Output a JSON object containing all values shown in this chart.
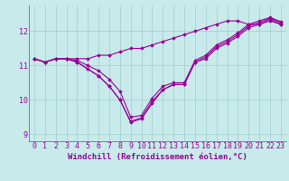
{
  "series": [
    [
      11.2,
      11.1,
      11.2,
      11.2,
      11.2,
      11.2,
      11.3,
      11.3,
      11.4,
      11.5,
      11.5,
      11.6,
      11.7,
      11.8,
      11.9,
      12.0,
      12.1,
      12.2,
      12.3,
      12.3,
      12.2,
      12.2,
      12.3,
      12.2
    ],
    [
      11.2,
      11.1,
      11.2,
      11.2,
      11.1,
      10.9,
      10.7,
      10.4,
      10.0,
      9.35,
      9.45,
      9.9,
      10.3,
      10.45,
      10.45,
      11.1,
      11.2,
      11.5,
      11.65,
      11.85,
      12.1,
      12.2,
      12.35,
      12.2
    ],
    [
      11.2,
      11.1,
      11.2,
      11.2,
      11.1,
      10.9,
      10.7,
      10.4,
      10.0,
      9.38,
      9.48,
      9.95,
      10.3,
      10.45,
      10.45,
      11.1,
      11.25,
      11.55,
      11.7,
      11.9,
      12.15,
      12.25,
      12.38,
      12.25
    ],
    [
      11.2,
      11.1,
      11.2,
      11.2,
      11.15,
      11.0,
      10.85,
      10.6,
      10.25,
      9.5,
      9.55,
      10.05,
      10.4,
      10.5,
      10.5,
      11.15,
      11.3,
      11.6,
      11.75,
      11.95,
      12.2,
      12.3,
      12.4,
      12.28
    ]
  ],
  "x": [
    0,
    1,
    2,
    3,
    4,
    5,
    6,
    7,
    8,
    9,
    10,
    11,
    12,
    13,
    14,
    15,
    16,
    17,
    18,
    19,
    20,
    21,
    22,
    23
  ],
  "color": "#990099",
  "bg_color": "#c8eaea",
  "grid_color": "#a0cccc",
  "ylim": [
    8.8,
    12.75
  ],
  "xlim": [
    -0.5,
    23.5
  ],
  "xlabel": "Windchill (Refroidissement éolien,°C)",
  "yticks": [
    9,
    10,
    11,
    12
  ],
  "xticks": [
    0,
    1,
    2,
    3,
    4,
    5,
    6,
    7,
    8,
    9,
    10,
    11,
    12,
    13,
    14,
    15,
    16,
    17,
    18,
    19,
    20,
    21,
    22,
    23
  ],
  "marker": "D",
  "markersize": 1.8,
  "linewidth": 0.8,
  "xlabel_fontsize": 6.5,
  "tick_fontsize": 6.0
}
